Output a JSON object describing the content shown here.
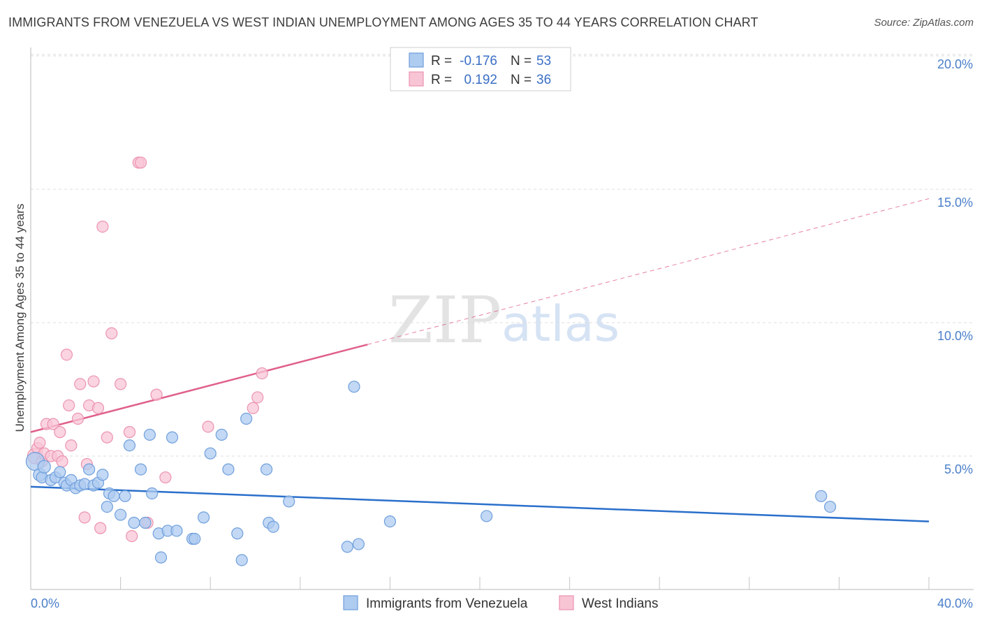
{
  "title": "IMMIGRANTS FROM VENEZUELA VS WEST INDIAN UNEMPLOYMENT AMONG AGES 35 TO 44 YEARS CORRELATION CHART",
  "source": "Source: ZipAtlas.com",
  "colors": {
    "blue_fill": "#aecbf0",
    "blue_stroke": "#6f9fdc",
    "blue_line": "#2a6fcb",
    "pink_fill": "#f8c5d5",
    "pink_stroke": "#ec93b0",
    "pink_line": "#e0608a",
    "grid": "#dddddd",
    "tick_text": "#4a7fc9"
  },
  "legend": {
    "row1": {
      "r_label": "R =",
      "r_value": "-0.176",
      "n_label": "N =",
      "n_value": "53"
    },
    "row2": {
      "r_label": "R =",
      "r_value": "0.192",
      "n_label": "N =",
      "n_value": "36"
    }
  },
  "watermark": {
    "zip": "ZIP",
    "atlas": "atlas"
  },
  "chart_data": {
    "type": "scatter",
    "title": "IMMIGRANTS FROM VENEZUELA VS WEST INDIAN UNEMPLOYMENT AMONG AGES 35 TO 44 YEARS CORRELATION CHART",
    "xlabel": "",
    "ylabel": "Unemployment Among Ages 35 to 44 years",
    "xlim": [
      0,
      40
    ],
    "ylim": [
      0,
      20
    ],
    "x_tick_labels": [
      "0.0%",
      "40.0%"
    ],
    "y_ticks": [
      5,
      10,
      15,
      20
    ],
    "y_tick_labels": [
      "5.0%",
      "10.0%",
      "15.0%",
      "20.0%"
    ],
    "grid": true,
    "legend_position": "top-center",
    "series": [
      {
        "name": "Immigrants from Venezuela",
        "R": -0.176,
        "N": 53,
        "trend": {
          "x": [
            0,
            40
          ],
          "y": [
            3.85,
            2.55
          ],
          "solid_until": 40
        },
        "points": [
          {
            "x": 0.2,
            "y": 4.8,
            "r": 13
          },
          {
            "x": 0.4,
            "y": 4.3,
            "r": 9
          },
          {
            "x": 0.5,
            "y": 4.2,
            "r": 8
          },
          {
            "x": 0.6,
            "y": 4.6,
            "r": 9
          },
          {
            "x": 0.9,
            "y": 4.1,
            "r": 8
          },
          {
            "x": 1.1,
            "y": 4.2,
            "r": 8
          },
          {
            "x": 1.3,
            "y": 4.4,
            "r": 8
          },
          {
            "x": 1.5,
            "y": 4.0,
            "r": 8
          },
          {
            "x": 1.6,
            "y": 3.9,
            "r": 8
          },
          {
            "x": 1.8,
            "y": 4.1,
            "r": 8
          },
          {
            "x": 2.0,
            "y": 3.8,
            "r": 8
          },
          {
            "x": 2.2,
            "y": 3.9,
            "r": 8
          },
          {
            "x": 2.4,
            "y": 3.95,
            "r": 8
          },
          {
            "x": 2.6,
            "y": 4.5,
            "r": 8
          },
          {
            "x": 2.8,
            "y": 3.9,
            "r": 8
          },
          {
            "x": 3.0,
            "y": 4.0,
            "r": 8
          },
          {
            "x": 3.2,
            "y": 4.3,
            "r": 8
          },
          {
            "x": 3.4,
            "y": 3.1,
            "r": 8
          },
          {
            "x": 3.5,
            "y": 3.6,
            "r": 8
          },
          {
            "x": 3.7,
            "y": 3.5,
            "r": 8
          },
          {
            "x": 4.0,
            "y": 2.8,
            "r": 8
          },
          {
            "x": 4.2,
            "y": 3.5,
            "r": 8
          },
          {
            "x": 4.4,
            "y": 5.4,
            "r": 8
          },
          {
            "x": 4.6,
            "y": 2.5,
            "r": 8
          },
          {
            "x": 4.9,
            "y": 4.5,
            "r": 8
          },
          {
            "x": 5.1,
            "y": 2.5,
            "r": 8
          },
          {
            "x": 5.3,
            "y": 5.8,
            "r": 8
          },
          {
            "x": 5.4,
            "y": 3.6,
            "r": 8
          },
          {
            "x": 5.7,
            "y": 2.1,
            "r": 8
          },
          {
            "x": 5.8,
            "y": 1.2,
            "r": 8
          },
          {
            "x": 6.1,
            "y": 2.2,
            "r": 8
          },
          {
            "x": 6.3,
            "y": 5.7,
            "r": 8
          },
          {
            "x": 6.5,
            "y": 2.2,
            "r": 8
          },
          {
            "x": 7.2,
            "y": 1.9,
            "r": 8
          },
          {
            "x": 7.3,
            "y": 1.9,
            "r": 8
          },
          {
            "x": 7.7,
            "y": 2.7,
            "r": 8
          },
          {
            "x": 8.0,
            "y": 5.1,
            "r": 8
          },
          {
            "x": 8.5,
            "y": 5.8,
            "r": 8
          },
          {
            "x": 8.8,
            "y": 4.5,
            "r": 8
          },
          {
            "x": 9.2,
            "y": 2.1,
            "r": 8
          },
          {
            "x": 9.4,
            "y": 1.1,
            "r": 8
          },
          {
            "x": 9.6,
            "y": 6.4,
            "r": 8
          },
          {
            "x": 10.5,
            "y": 4.5,
            "r": 8
          },
          {
            "x": 10.6,
            "y": 2.5,
            "r": 8
          },
          {
            "x": 10.8,
            "y": 2.35,
            "r": 8
          },
          {
            "x": 11.5,
            "y": 3.3,
            "r": 8
          },
          {
            "x": 14.1,
            "y": 1.6,
            "r": 8
          },
          {
            "x": 14.4,
            "y": 7.6,
            "r": 8
          },
          {
            "x": 14.6,
            "y": 1.7,
            "r": 8
          },
          {
            "x": 16.0,
            "y": 2.55,
            "r": 8
          },
          {
            "x": 20.3,
            "y": 2.75,
            "r": 8
          },
          {
            "x": 35.2,
            "y": 3.5,
            "r": 8
          },
          {
            "x": 35.6,
            "y": 3.1,
            "r": 8
          }
        ]
      },
      {
        "name": "West Indians",
        "R": 0.192,
        "N": 36,
        "trend": {
          "x": [
            0,
            40
          ],
          "y": [
            5.9,
            14.65
          ],
          "solid_until": 15
        },
        "points": [
          {
            "x": 0.2,
            "y": 5.0,
            "r": 11
          },
          {
            "x": 0.3,
            "y": 5.3,
            "r": 8
          },
          {
            "x": 0.4,
            "y": 5.5,
            "r": 8
          },
          {
            "x": 0.5,
            "y": 4.8,
            "r": 8
          },
          {
            "x": 0.6,
            "y": 5.1,
            "r": 8
          },
          {
            "x": 0.7,
            "y": 6.2,
            "r": 8
          },
          {
            "x": 0.9,
            "y": 5.0,
            "r": 8
          },
          {
            "x": 1.0,
            "y": 6.2,
            "r": 8
          },
          {
            "x": 1.2,
            "y": 5.0,
            "r": 8
          },
          {
            "x": 1.3,
            "y": 5.9,
            "r": 8
          },
          {
            "x": 1.4,
            "y": 4.8,
            "r": 8
          },
          {
            "x": 1.6,
            "y": 8.8,
            "r": 8
          },
          {
            "x": 1.7,
            "y": 6.9,
            "r": 8
          },
          {
            "x": 1.8,
            "y": 5.4,
            "r": 8
          },
          {
            "x": 2.1,
            "y": 6.4,
            "r": 8
          },
          {
            "x": 2.2,
            "y": 7.7,
            "r": 8
          },
          {
            "x": 2.4,
            "y": 2.7,
            "r": 8
          },
          {
            "x": 2.5,
            "y": 4.7,
            "r": 8
          },
          {
            "x": 2.6,
            "y": 6.9,
            "r": 8
          },
          {
            "x": 2.8,
            "y": 7.8,
            "r": 8
          },
          {
            "x": 3.0,
            "y": 6.8,
            "r": 8
          },
          {
            "x": 3.1,
            "y": 2.3,
            "r": 8
          },
          {
            "x": 3.2,
            "y": 13.6,
            "r": 8
          },
          {
            "x": 3.4,
            "y": 5.7,
            "r": 8
          },
          {
            "x": 3.6,
            "y": 9.6,
            "r": 8
          },
          {
            "x": 4.0,
            "y": 7.7,
            "r": 8
          },
          {
            "x": 4.4,
            "y": 5.9,
            "r": 8
          },
          {
            "x": 4.5,
            "y": 2.0,
            "r": 8
          },
          {
            "x": 4.8,
            "y": 16.0,
            "r": 8
          },
          {
            "x": 4.9,
            "y": 16.0,
            "r": 8
          },
          {
            "x": 5.2,
            "y": 2.5,
            "r": 8
          },
          {
            "x": 5.6,
            "y": 7.3,
            "r": 8
          },
          {
            "x": 6.0,
            "y": 4.2,
            "r": 8
          },
          {
            "x": 7.9,
            "y": 6.1,
            "r": 8
          },
          {
            "x": 9.9,
            "y": 6.8,
            "r": 8
          },
          {
            "x": 10.1,
            "y": 7.2,
            "r": 8
          },
          {
            "x": 10.3,
            "y": 8.1,
            "r": 8
          }
        ]
      }
    ]
  }
}
